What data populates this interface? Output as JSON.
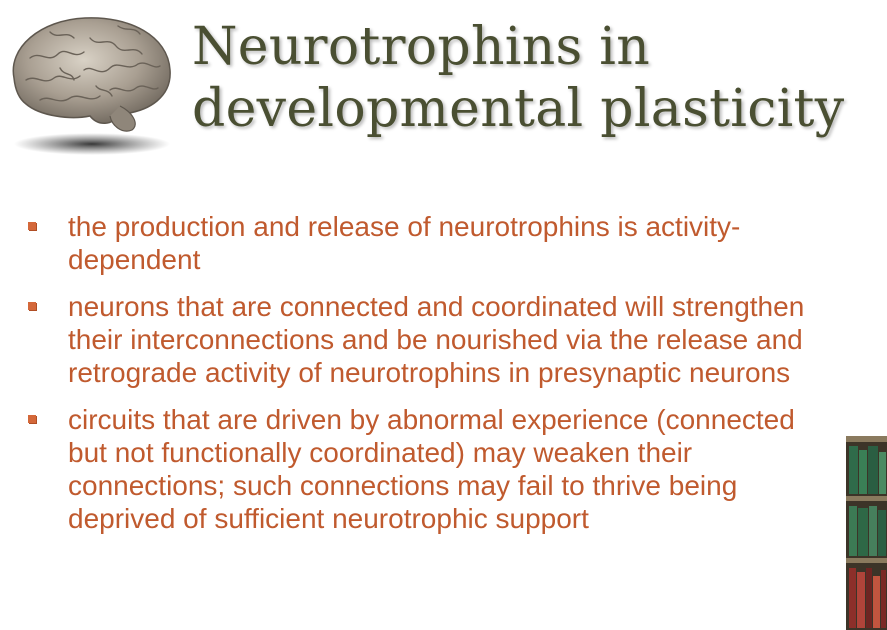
{
  "slide": {
    "title_line1": "Neurotrophins in",
    "title_line2": "developmental plasticity",
    "bullets": [
      {
        "text": "the production and release of neurotrophins is activity-dependent"
      },
      {
        "text": "neurons that are connected and coordinated will strengthen their interconnections and be nourished via the release and retrograde activity of neurotrophins in presynaptic neurons"
      },
      {
        "text": "circuits that are driven by abnormal experience (connected but not functionally coordinated) may weaken their connections; such connections may fail to thrive being deprived of sufficient neurotrophic support"
      }
    ],
    "colors": {
      "title": "#4a4f32",
      "bullet_text": "#c05a2e",
      "bullet_marker": "#d4683a"
    },
    "icons": {
      "brain": "brain-image",
      "bookshelf": "bookshelf-image"
    }
  }
}
